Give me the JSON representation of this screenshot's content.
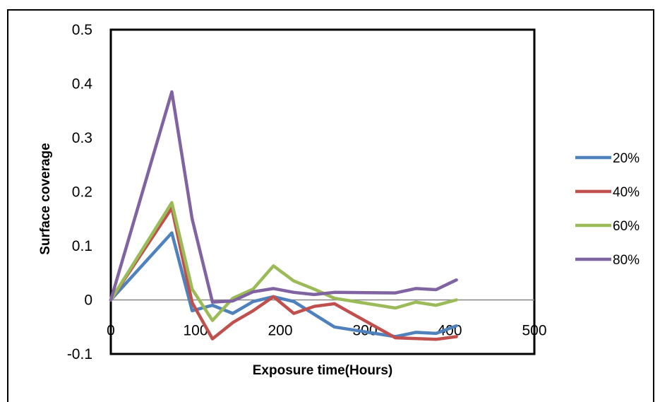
{
  "chart_data": {
    "type": "line",
    "title": "",
    "xlabel": "Exposure time(Hours)",
    "ylabel": "Surface coverage",
    "xlim": [
      0,
      500
    ],
    "ylim": [
      -0.1,
      0.5
    ],
    "x_ticks": [
      "0",
      "100",
      "200",
      "300",
      "400",
      "500"
    ],
    "y_ticks": [
      "0.5",
      "0.4",
      "0.3",
      "0.2",
      "0.1",
      "0",
      "-0.1"
    ],
    "grid": false,
    "legend_position": "right",
    "series": [
      {
        "name": "20%",
        "color": "#4F81BD",
        "points": [
          [
            0,
            0
          ],
          [
            72,
            0.124
          ],
          [
            96,
            -0.02
          ],
          [
            120,
            -0.01
          ],
          [
            144,
            -0.025
          ],
          [
            168,
            -0.003
          ],
          [
            192,
            0.006
          ],
          [
            216,
            -0.003
          ],
          [
            264,
            -0.05
          ],
          [
            336,
            -0.068
          ],
          [
            360,
            -0.06
          ],
          [
            384,
            -0.062
          ],
          [
            408,
            -0.048
          ]
        ]
      },
      {
        "name": "40%",
        "color": "#C0504D",
        "points": [
          [
            0,
            0
          ],
          [
            72,
            0.17
          ],
          [
            96,
            -0.005
          ],
          [
            120,
            -0.072
          ],
          [
            144,
            -0.042
          ],
          [
            168,
            -0.02
          ],
          [
            192,
            0.006
          ],
          [
            216,
            -0.025
          ],
          [
            240,
            -0.012
          ],
          [
            264,
            -0.007
          ],
          [
            336,
            -0.07
          ],
          [
            384,
            -0.073
          ],
          [
            408,
            -0.068
          ]
        ]
      },
      {
        "name": "60%",
        "color": "#9BBB59",
        "points": [
          [
            0,
            0
          ],
          [
            72,
            0.18
          ],
          [
            96,
            0.02
          ],
          [
            120,
            -0.038
          ],
          [
            144,
            0.003
          ],
          [
            168,
            0.02
          ],
          [
            192,
            0.063
          ],
          [
            216,
            0.035
          ],
          [
            240,
            0.02
          ],
          [
            264,
            0.003
          ],
          [
            336,
            -0.015
          ],
          [
            360,
            -0.004
          ],
          [
            384,
            -0.01
          ],
          [
            408,
            0
          ]
        ]
      },
      {
        "name": "80%",
        "color": "#8064A2",
        "points": [
          [
            0,
            0
          ],
          [
            72,
            0.385
          ],
          [
            96,
            0.15
          ],
          [
            120,
            -0.004
          ],
          [
            144,
            -0.002
          ],
          [
            168,
            0.015
          ],
          [
            192,
            0.021
          ],
          [
            216,
            0.014
          ],
          [
            240,
            0.01
          ],
          [
            264,
            0.014
          ],
          [
            336,
            0.013
          ],
          [
            360,
            0.021
          ],
          [
            384,
            0.019
          ],
          [
            408,
            0.037
          ]
        ]
      }
    ]
  }
}
